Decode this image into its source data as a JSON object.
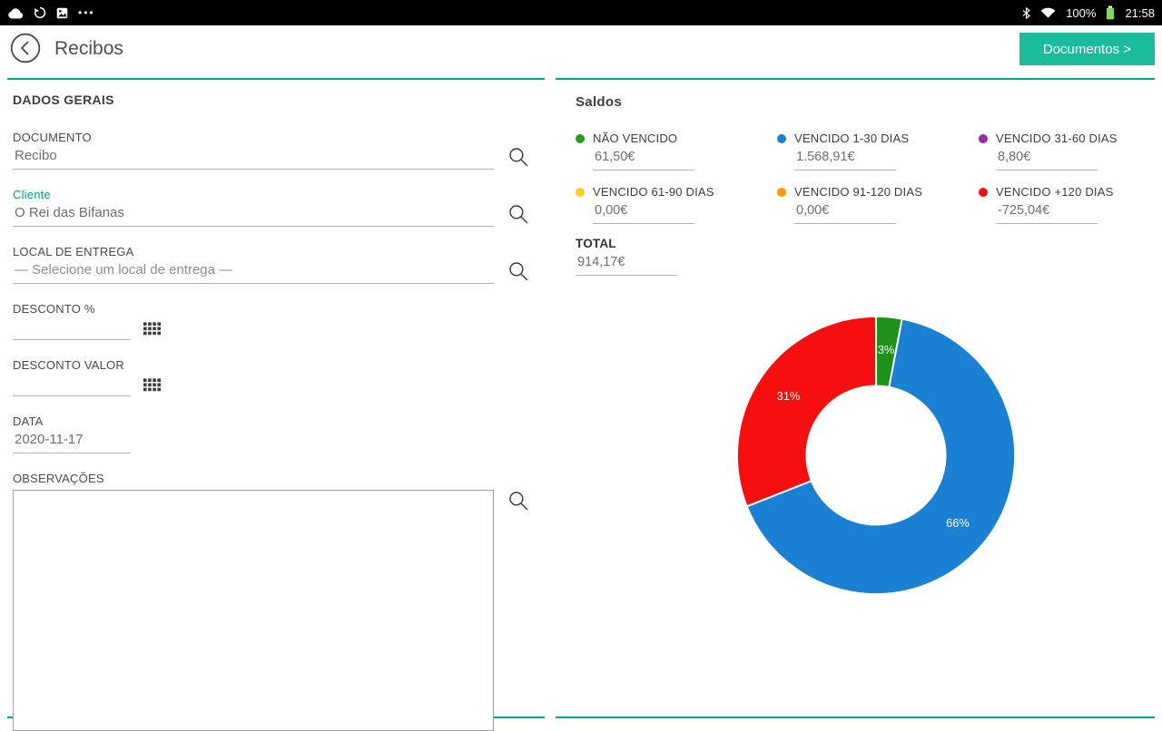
{
  "colors": {
    "accent": "#00a98e",
    "button": "#1bbc9c"
  },
  "status_bar": {
    "time": "21:58",
    "battery_percent": "100%",
    "more_icon": "•••"
  },
  "header": {
    "title": "Recibos",
    "documents_button": "Documentos >"
  },
  "general": {
    "title": "DADOS GERAIS",
    "fields": [
      {
        "label": "DOCUMENTO",
        "value": "Recibo"
      },
      {
        "label": "Cliente",
        "value": "O Rei das Bifanas"
      },
      {
        "label": "LOCAL DE ENTREGA",
        "value": "— Selecione um local de entrega —"
      },
      {
        "label": "DESCONTO %",
        "value": ""
      },
      {
        "label": "DESCONTO VALOR",
        "value": ""
      },
      {
        "label": "DATA",
        "value": "2020-11-17"
      },
      {
        "label": "OBSERVAÇÕES",
        "value": ""
      }
    ]
  },
  "saldos": {
    "title": "Saldos",
    "legend": [
      {
        "label": "NÃO VENCIDO",
        "value": "61,50€",
        "color": "#279b1c"
      },
      {
        "label": "VENCIDO 1-30 DIAS",
        "value": "1.568,91€",
        "color": "#1a80d4"
      },
      {
        "label": "VENCIDO 31-60 DIAS",
        "value": "8,80€",
        "color": "#9b27af"
      },
      {
        "label": "VENCIDO 61-90 DIAS",
        "value": "0,00€",
        "color": "#f3cf1e"
      },
      {
        "label": "VENCIDO 91-120 DIAS",
        "value": "0,00€",
        "color": "#ff9800"
      },
      {
        "label": "VENCIDO +120 DIAS",
        "value": "-725,04€",
        "color": "#f60f0f"
      }
    ],
    "total_label": "TOTAL",
    "total_value": "914,17€"
  },
  "chart_data": {
    "type": "pie",
    "variant": "donut",
    "title": "Saldos",
    "labels": [
      "NÃO VENCIDO",
      "VENCIDO 1-30 DIAS",
      "VENCIDO +120 DIAS"
    ],
    "values": [
      3,
      66,
      31
    ],
    "percent_labels": [
      "3%",
      "66%",
      "31%"
    ],
    "amounts": [
      "61,50€",
      "1.568,91€",
      "-725,04€"
    ],
    "colors": [
      "#1f9118",
      "#1a80d4",
      "#f60f0f"
    ],
    "start_angle_deg": 0,
    "inner_radius_ratio": 0.5,
    "legend_position": "top"
  }
}
